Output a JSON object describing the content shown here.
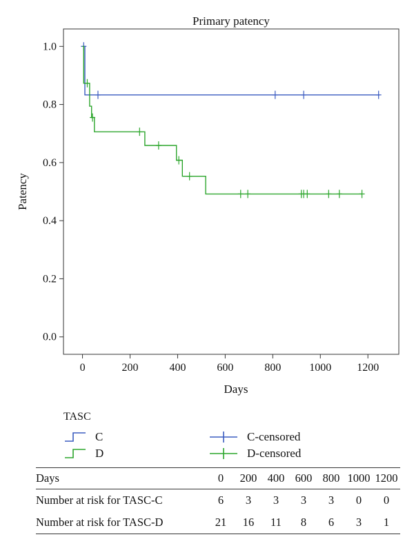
{
  "chart_data": {
    "type": "line",
    "step": true,
    "title": "Primary patency",
    "xlabel": "Days",
    "ylabel": "Patency",
    "xlim": [
      -80,
      1330
    ],
    "ylim": [
      -0.06,
      1.06
    ],
    "x_ticks": [
      "0",
      "200",
      "400",
      "600",
      "800",
      "1000",
      "1200"
    ],
    "y_ticks": [
      "0.0",
      "0.2",
      "0.4",
      "0.6",
      "0.8",
      "1.0"
    ],
    "grid": false,
    "series": [
      {
        "name": "C",
        "color": "#3a5bc0",
        "steps": [
          [
            0,
            1.0
          ],
          [
            10,
            1.0
          ],
          [
            10,
            0.833
          ],
          [
            1250,
            0.833
          ]
        ],
        "censored": [
          [
            5,
            1.0
          ],
          [
            65,
            0.833
          ],
          [
            810,
            0.833
          ],
          [
            930,
            0.833
          ],
          [
            1245,
            0.833
          ]
        ]
      },
      {
        "name": "D",
        "color": "#2ba52b",
        "steps": [
          [
            0,
            1.0
          ],
          [
            5,
            1.0
          ],
          [
            5,
            0.873
          ],
          [
            30,
            0.873
          ],
          [
            30,
            0.794
          ],
          [
            38,
            0.794
          ],
          [
            38,
            0.755
          ],
          [
            50,
            0.755
          ],
          [
            50,
            0.706
          ],
          [
            262,
            0.706
          ],
          [
            262,
            0.659
          ],
          [
            395,
            0.659
          ],
          [
            395,
            0.608
          ],
          [
            420,
            0.608
          ],
          [
            420,
            0.553
          ],
          [
            518,
            0.553
          ],
          [
            518,
            0.492
          ],
          [
            1175,
            0.492
          ]
        ],
        "censored": [
          [
            20,
            0.873
          ],
          [
            42,
            0.755
          ],
          [
            240,
            0.706
          ],
          [
            320,
            0.659
          ],
          [
            405,
            0.608
          ],
          [
            450,
            0.553
          ],
          [
            665,
            0.492
          ],
          [
            695,
            0.492
          ],
          [
            920,
            0.492
          ],
          [
            930,
            0.492
          ],
          [
            945,
            0.492
          ],
          [
            1035,
            0.492
          ],
          [
            1080,
            0.492
          ],
          [
            1175,
            0.492
          ]
        ]
      }
    ]
  },
  "legend": {
    "title": "TASC",
    "items": [
      {
        "label": "C",
        "color": "#3a5bc0"
      },
      {
        "label": "D",
        "color": "#2ba52b"
      },
      {
        "label": "C-censored",
        "color": "#3a5bc0"
      },
      {
        "label": "D-censored",
        "color": "#2ba52b"
      }
    ]
  },
  "risk_table": {
    "header_label": "Days",
    "days": [
      "0",
      "200",
      "400",
      "600",
      "800",
      "1000",
      "1200"
    ],
    "rows": [
      {
        "label": "Number at risk for TASC-C",
        "values": [
          "6",
          "3",
          "3",
          "3",
          "3",
          "0",
          "0"
        ]
      },
      {
        "label": "Number at risk for TASC-D",
        "values": [
          "21",
          "16",
          "11",
          "8",
          "6",
          "3",
          "1"
        ]
      }
    ]
  }
}
